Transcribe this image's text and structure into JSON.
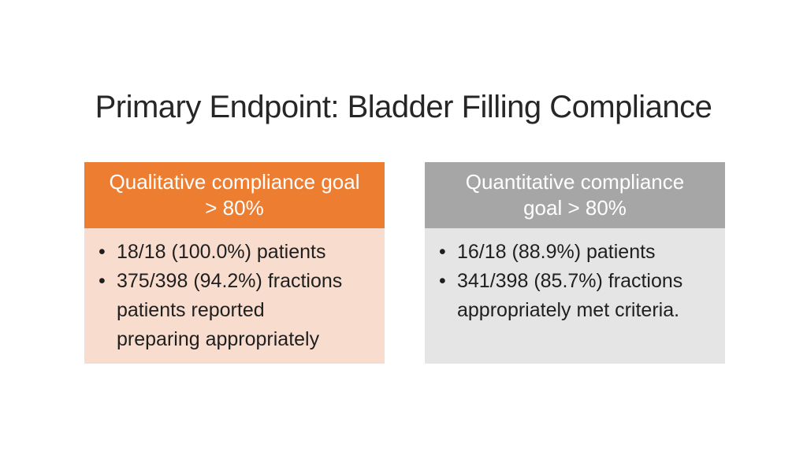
{
  "slide": {
    "title": "Primary Endpoint: Bladder Filling Compliance"
  },
  "panels": [
    {
      "name": "qualitative",
      "header": "Qualitative compliance goal\n> 80%",
      "header_color": "#ED7D31",
      "body_color": "#F8DCCE",
      "bullets": [
        "18/18 (100.0%) patients",
        "375/398 (94.2%) fractions\npatients reported\npreparing appropriately"
      ]
    },
    {
      "name": "quantitative",
      "header": "Quantitative compliance\ngoal > 80%",
      "header_color": "#A6A6A6",
      "body_color": "#E6E5E5",
      "bullets": [
        "16/18 (88.9%) patients",
        "341/398 (85.7%) fractions\nappropriately met criteria."
      ]
    }
  ],
  "colors": {
    "title_text": "#262626",
    "body_text": "#1f1f1f",
    "header_text": "#ffffff",
    "background": "#ffffff"
  }
}
